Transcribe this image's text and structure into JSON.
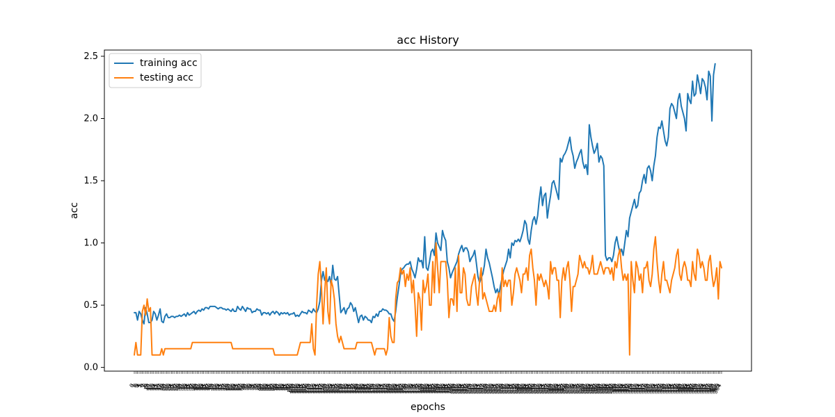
{
  "chart_data": {
    "type": "line",
    "title": "acc History",
    "xlabel": "epochs",
    "ylabel": "acc",
    "ylim": [
      -0.03,
      2.55
    ],
    "yticks": [
      "0.0",
      "0.5",
      "1.0",
      "1.5",
      "2.0",
      "2.5"
    ],
    "grid": false,
    "legend_position": "upper-left",
    "series": [
      {
        "name": "training acc",
        "color": "#1f77b4",
        "values": [
          0.44,
          0.44,
          0.38,
          0.45,
          0.43,
          0.38,
          0.35,
          0.48,
          0.43,
          0.36,
          0.36,
          0.38,
          0.45,
          0.43,
          0.38,
          0.42,
          0.47,
          0.37,
          0.36,
          0.41,
          0.43,
          0.4,
          0.4,
          0.41,
          0.41,
          0.4,
          0.41,
          0.41,
          0.42,
          0.41,
          0.42,
          0.43,
          0.41,
          0.44,
          0.42,
          0.43,
          0.44,
          0.45,
          0.43,
          0.45,
          0.46,
          0.45,
          0.47,
          0.46,
          0.48,
          0.48,
          0.47,
          0.49,
          0.49,
          0.49,
          0.49,
          0.48,
          0.47,
          0.48,
          0.48,
          0.47,
          0.47,
          0.46,
          0.47,
          0.46,
          0.45,
          0.47,
          0.45,
          0.45,
          0.49,
          0.47,
          0.46,
          0.49,
          0.47,
          0.45,
          0.48,
          0.47,
          0.47,
          0.44,
          0.45,
          0.45,
          0.47,
          0.46,
          0.46,
          0.42,
          0.44,
          0.44,
          0.43,
          0.44,
          0.42,
          0.44,
          0.45,
          0.43,
          0.45,
          0.44,
          0.42,
          0.44,
          0.43,
          0.44,
          0.43,
          0.44,
          0.42,
          0.43,
          0.43,
          0.44,
          0.41,
          0.42,
          0.41,
          0.43,
          0.45,
          0.44,
          0.44,
          0.43,
          0.46,
          0.45,
          0.44,
          0.47,
          0.45,
          0.44,
          0.47,
          0.53,
          0.7,
          0.77,
          0.7,
          0.71,
          0.69,
          0.73,
          0.66,
          0.82,
          0.71,
          0.7,
          0.73,
          0.58,
          0.44,
          0.46,
          0.48,
          0.43,
          0.47,
          0.48,
          0.52,
          0.5,
          0.45,
          0.48,
          0.42,
          0.36,
          0.41,
          0.42,
          0.38,
          0.41,
          0.4,
          0.38,
          0.38,
          0.36,
          0.41,
          0.4,
          0.43,
          0.41,
          0.45,
          0.45,
          0.47,
          0.46,
          0.46,
          0.45,
          0.43,
          0.43,
          0.39,
          0.37,
          0.45,
          0.56,
          0.65,
          0.75,
          0.79,
          0.8,
          0.82,
          0.83,
          0.83,
          0.85,
          0.79,
          0.76,
          0.72,
          0.79,
          0.88,
          0.85,
          0.86,
          0.8,
          1.05,
          0.8,
          0.78,
          0.85,
          0.93,
          0.95,
          0.9,
          1.08,
          1.0,
          0.97,
          0.94,
          1.1,
          1.05,
          1.02,
          0.85,
          0.8,
          0.72,
          0.76,
          0.79,
          0.82,
          0.85,
          0.91,
          0.95,
          0.98,
          0.93,
          0.96,
          0.96,
          0.93,
          0.85,
          0.88,
          0.9,
          0.94,
          0.84,
          0.73,
          0.68,
          0.72,
          0.75,
          0.82,
          0.95,
          0.88,
          0.84,
          0.78,
          0.72,
          0.65,
          0.6,
          0.63,
          0.58,
          0.66,
          0.72,
          0.78,
          0.82,
          0.86,
          0.95,
          0.88,
          1.0,
          0.98,
          1.02,
          1.01,
          1.03,
          1.01,
          1.05,
          1.1,
          1.18,
          1.15,
          1.03,
          0.99,
          1.1,
          1.18,
          1.21,
          1.15,
          1.22,
          1.35,
          1.45,
          1.3,
          1.38,
          1.4,
          1.2,
          1.3,
          1.38,
          1.48,
          1.5,
          1.45,
          1.4,
          1.35,
          1.68,
          1.65,
          1.7,
          1.72,
          1.75,
          1.8,
          1.85,
          1.75,
          1.7,
          1.6,
          1.65,
          1.68,
          1.72,
          1.75,
          1.65,
          1.6,
          1.63,
          1.55,
          1.95,
          1.85,
          1.78,
          1.72,
          1.75,
          1.8,
          1.65,
          1.7,
          1.68,
          1.62,
          0.9,
          0.86,
          0.88,
          0.88,
          0.85,
          0.9,
          1.0,
          1.05,
          0.98,
          0.92,
          0.95,
          0.9,
          1.0,
          1.1,
          1.05,
          1.2,
          1.25,
          1.3,
          1.35,
          1.28,
          1.3,
          1.4,
          1.42,
          1.5,
          1.55,
          1.48,
          1.6,
          1.62,
          1.58,
          1.5,
          1.62,
          1.7,
          1.85,
          1.93,
          1.92,
          1.98,
          1.9,
          1.82,
          1.78,
          1.85,
          2.08,
          2.12,
          2.1,
          2.05,
          2.0,
          2.15,
          2.2,
          2.1,
          2.05,
          2.0,
          1.9,
          2.2,
          2.15,
          2.12,
          2.3,
          2.18,
          2.2,
          2.35,
          2.28,
          2.2,
          2.32,
          2.3,
          2.25,
          2.15,
          2.38,
          2.34,
          1.98,
          2.35,
          2.44
        ]
      },
      {
        "name": "testing acc",
        "color": "#ff7f0e",
        "values": [
          0.1,
          0.2,
          0.1,
          0.1,
          0.1,
          0.45,
          0.5,
          0.42,
          0.55,
          0.45,
          0.48,
          0.1,
          0.1,
          0.1,
          0.1,
          0.1,
          0.1,
          0.15,
          0.1,
          0.15,
          0.15,
          0.15,
          0.15,
          0.15,
          0.15,
          0.15,
          0.15,
          0.15,
          0.15,
          0.15,
          0.15,
          0.15,
          0.15,
          0.15,
          0.15,
          0.15,
          0.2,
          0.2,
          0.2,
          0.2,
          0.2,
          0.2,
          0.2,
          0.2,
          0.2,
          0.2,
          0.2,
          0.2,
          0.2,
          0.2,
          0.2,
          0.2,
          0.2,
          0.2,
          0.2,
          0.2,
          0.2,
          0.2,
          0.2,
          0.2,
          0.2,
          0.15,
          0.15,
          0.15,
          0.15,
          0.15,
          0.15,
          0.15,
          0.15,
          0.15,
          0.15,
          0.15,
          0.15,
          0.15,
          0.15,
          0.15,
          0.15,
          0.15,
          0.15,
          0.15,
          0.15,
          0.15,
          0.15,
          0.15,
          0.15,
          0.15,
          0.15,
          0.1,
          0.1,
          0.1,
          0.1,
          0.1,
          0.1,
          0.1,
          0.1,
          0.1,
          0.1,
          0.1,
          0.1,
          0.1,
          0.1,
          0.1,
          0.15,
          0.2,
          0.2,
          0.2,
          0.2,
          0.2,
          0.2,
          0.2,
          0.35,
          0.15,
          0.1,
          0.5,
          0.75,
          0.85,
          0.65,
          0.35,
          0.6,
          0.8,
          0.45,
          0.35,
          0.7,
          0.65,
          0.55,
          0.35,
          0.25,
          0.2,
          0.25,
          0.2,
          0.15,
          0.15,
          0.15,
          0.15,
          0.15,
          0.15,
          0.15,
          0.15,
          0.2,
          0.2,
          0.2,
          0.2,
          0.2,
          0.2,
          0.2,
          0.2,
          0.2,
          0.2,
          0.15,
          0.1,
          0.15,
          0.15,
          0.15,
          0.15,
          0.15,
          0.15,
          0.1,
          0.15,
          0.4,
          0.25,
          0.2,
          0.2,
          0.55,
          0.68,
          0.7,
          0.8,
          0.75,
          0.78,
          0.65,
          0.75,
          0.7,
          0.8,
          0.6,
          0.7,
          0.5,
          0.25,
          0.6,
          0.55,
          0.3,
          0.7,
          0.6,
          0.65,
          0.75,
          0.5,
          0.5,
          0.85,
          0.6,
          1.0,
          0.8,
          0.6,
          0.85,
          0.85,
          0.85,
          0.85,
          0.7,
          0.4,
          0.55,
          0.55,
          0.5,
          0.8,
          0.45,
          0.9,
          0.6,
          0.6,
          0.8,
          0.75,
          0.55,
          0.5,
          0.5,
          0.65,
          0.7,
          0.75,
          0.6,
          0.5,
          0.7,
          0.8,
          0.55,
          0.6,
          0.55,
          0.5,
          0.45,
          0.45,
          0.45,
          0.5,
          0.45,
          0.55,
          0.6,
          0.45,
          0.8,
          0.65,
          0.7,
          0.65,
          0.7,
          0.7,
          0.5,
          0.6,
          0.75,
          0.8,
          0.75,
          0.7,
          0.6,
          0.75,
          0.75,
          0.8,
          0.7,
          0.9,
          0.95,
          0.8,
          0.7,
          0.5,
          0.75,
          0.7,
          0.75,
          0.7,
          0.65,
          0.7,
          0.65,
          0.55,
          0.85,
          0.75,
          0.8,
          0.8,
          0.7,
          0.7,
          0.4,
          0.7,
          0.8,
          0.7,
          0.8,
          0.85,
          0.7,
          0.45,
          0.65,
          0.65,
          0.7,
          0.75,
          0.9,
          0.85,
          0.8,
          0.85,
          0.8,
          0.8,
          0.75,
          0.8,
          0.9,
          0.75,
          0.75,
          0.75,
          0.8,
          0.85,
          0.8,
          0.75,
          0.8,
          0.8,
          0.8,
          0.75,
          0.8,
          0.7,
          0.85,
          0.8,
          0.9,
          0.95,
          0.8,
          0.7,
          0.75,
          0.7,
          0.75,
          0.1,
          0.85,
          0.7,
          0.6,
          0.85,
          0.8,
          0.7,
          0.75,
          0.6,
          0.8,
          0.8,
          0.85,
          0.7,
          0.65,
          0.75,
          0.95,
          1.05,
          0.85,
          0.7,
          0.6,
          0.75,
          0.85,
          0.7,
          0.7,
          0.65,
          0.6,
          0.7,
          0.75,
          0.8,
          0.9,
          0.95,
          0.75,
          0.7,
          0.8,
          0.85,
          0.8,
          0.7,
          0.7,
          0.65,
          0.85,
          0.75,
          0.7,
          0.95,
          0.9,
          0.8,
          0.85,
          0.8,
          0.7,
          0.7,
          0.85,
          0.9,
          0.75,
          0.65,
          0.7,
          0.8,
          0.55,
          0.85,
          0.8
        ]
      }
    ]
  }
}
